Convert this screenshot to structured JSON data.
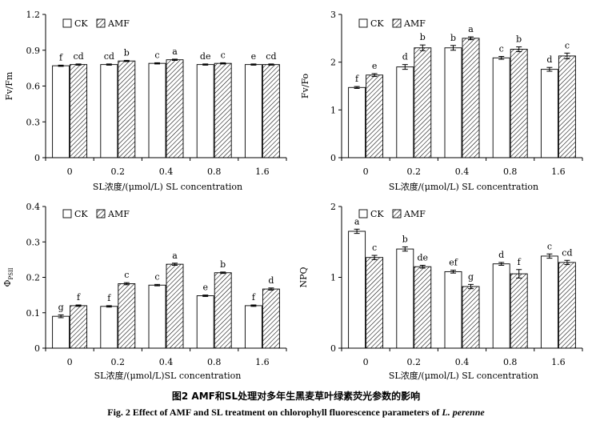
{
  "figure": {
    "caption_cn": "图2   AMF和SL处理对多年生黑麦草叶绿素荧光参数的影响",
    "caption_en_prefix": "Fig. 2    Effect of AMF and SL treatment on chlorophyll fluorescence parameters of ",
    "caption_en_species": "L. perenne"
  },
  "legend": {
    "ck": "CK",
    "amf": "AMF"
  },
  "chart_data": [
    {
      "type": "bar",
      "ylabel": "Fv/Fm",
      "xlabel": "SL浓度/(μmol/L)  SL concentration",
      "categories": [
        "0",
        "0.2",
        "0.4",
        "0.8",
        "1.6"
      ],
      "ylim": [
        0,
        1.2
      ],
      "yticks": [
        "0",
        "0.3",
        "0.6",
        "0.9",
        "1.2"
      ],
      "ytick_values": [
        0,
        0.3,
        0.6,
        0.9,
        1.2
      ],
      "grid": false,
      "legend_position": "top-left",
      "series": [
        {
          "name": "CK",
          "values": [
            0.77,
            0.78,
            0.79,
            0.78,
            0.78
          ],
          "errors": [
            0.005,
            0.005,
            0.005,
            0.005,
            0.005
          ],
          "letters": [
            "f",
            "cd",
            "c",
            "de",
            "e"
          ]
        },
        {
          "name": "AMF",
          "values": [
            0.78,
            0.81,
            0.82,
            0.79,
            0.78
          ],
          "errors": [
            0.005,
            0.005,
            0.005,
            0.005,
            0.005
          ],
          "letters": [
            "cd",
            "b",
            "a",
            "c",
            "cd"
          ]
        }
      ]
    },
    {
      "type": "bar",
      "ylabel": "Fv/Fo",
      "xlabel": "SL浓度/(μmol/L)  SL concentration",
      "categories": [
        "0",
        "0.2",
        "0.4",
        "0.8",
        "1.6"
      ],
      "ylim": [
        0,
        3
      ],
      "yticks": [
        "0",
        "1",
        "2",
        "3"
      ],
      "ytick_values": [
        0,
        1,
        2,
        3
      ],
      "grid": false,
      "legend_position": "top-left",
      "series": [
        {
          "name": "CK",
          "values": [
            1.47,
            1.9,
            2.3,
            2.09,
            1.85
          ],
          "errors": [
            0.02,
            0.05,
            0.05,
            0.03,
            0.04
          ],
          "letters": [
            "f",
            "d",
            "b",
            "c",
            "d"
          ]
        },
        {
          "name": "AMF",
          "values": [
            1.73,
            2.3,
            2.5,
            2.27,
            2.13
          ],
          "errors": [
            0.03,
            0.06,
            0.03,
            0.05,
            0.06
          ],
          "letters": [
            "e",
            "b",
            "a",
            "b",
            "c"
          ]
        }
      ]
    },
    {
      "type": "bar",
      "ylabel": "Φ",
      "ylabel_sub": "PSII",
      "xlabel": "SL浓度/(μmol/L)SL concentration",
      "categories": [
        "0",
        "0.2",
        "0.4",
        "0.8",
        "1.6"
      ],
      "ylim": [
        0,
        0.4
      ],
      "yticks": [
        "0",
        "0.1",
        "0.2",
        "0.3",
        "0.4"
      ],
      "ytick_values": [
        0,
        0.1,
        0.2,
        0.3,
        0.4
      ],
      "grid": false,
      "legend_position": "top-left",
      "series": [
        {
          "name": "CK",
          "values": [
            0.09,
            0.118,
            0.178,
            0.148,
            0.12
          ],
          "errors": [
            0.004,
            0.002,
            0.002,
            0.002,
            0.002
          ],
          "letters": [
            "g",
            "f",
            "c",
            "e",
            "f"
          ]
        },
        {
          "name": "AMF",
          "values": [
            0.12,
            0.182,
            0.237,
            0.213,
            0.167
          ],
          "errors": [
            0.002,
            0.003,
            0.003,
            0.002,
            0.003
          ],
          "letters": [
            "f",
            "c",
            "a",
            "b",
            "d"
          ]
        }
      ]
    },
    {
      "type": "bar",
      "ylabel": "NPQ",
      "xlabel": "SL浓度/(μmol/L) SL concentration",
      "categories": [
        "0",
        "0.2",
        "0.4",
        "0.8",
        "1.6"
      ],
      "ylim": [
        0,
        2
      ],
      "yticks": [
        "0",
        "1",
        "2"
      ],
      "ytick_values": [
        0,
        1,
        2
      ],
      "grid": false,
      "legend_position": "top-left",
      "series": [
        {
          "name": "CK",
          "values": [
            1.65,
            1.4,
            1.08,
            1.19,
            1.3
          ],
          "errors": [
            0.03,
            0.03,
            0.02,
            0.02,
            0.03
          ],
          "letters": [
            "a",
            "b",
            "ef",
            "d",
            "c"
          ]
        },
        {
          "name": "AMF",
          "values": [
            1.28,
            1.15,
            0.87,
            1.05,
            1.21
          ],
          "errors": [
            0.03,
            0.02,
            0.03,
            0.06,
            0.03
          ],
          "letters": [
            "c",
            "de",
            "g",
            "f",
            "cd"
          ]
        }
      ]
    }
  ]
}
